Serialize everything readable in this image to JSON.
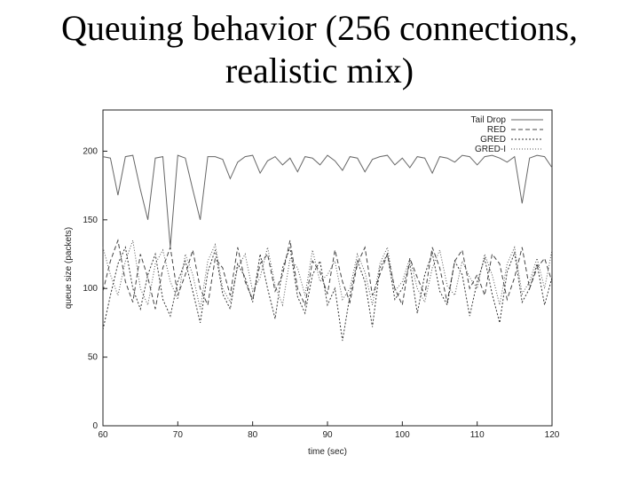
{
  "slide": {
    "title_line1": "Queuing behavior (256 connections,",
    "title_line2": "realistic mix)"
  },
  "chart_data": {
    "type": "line",
    "title": "Queuing behavior (256 connections, realistic mix)",
    "xlabel": "time (sec)",
    "ylabel": "queue size (packets)",
    "xlim": [
      60,
      120
    ],
    "ylim": [
      0,
      230
    ],
    "xticks": [
      60,
      70,
      80,
      90,
      100,
      110,
      120
    ],
    "yticks": [
      0,
      50,
      100,
      150,
      200
    ],
    "grid": false,
    "legend_position": "top-right",
    "series": [
      {
        "name": "Tail Drop",
        "color": "#666666",
        "dash": "",
        "x": [
          60,
          61,
          62,
          63,
          64,
          65,
          66,
          67,
          68,
          69,
          70,
          71,
          72,
          73,
          74,
          75,
          76,
          77,
          78,
          79,
          80,
          81,
          82,
          83,
          84,
          85,
          86,
          87,
          88,
          89,
          90,
          91,
          92,
          93,
          94,
          95,
          96,
          97,
          98,
          99,
          100,
          101,
          102,
          103,
          104,
          105,
          106,
          107,
          108,
          109,
          110,
          111,
          112,
          113,
          114,
          115,
          116,
          117,
          118,
          119,
          120
        ],
        "values": [
          196,
          195,
          168,
          196,
          197,
          172,
          150,
          195,
          196,
          130,
          197,
          195,
          172,
          150,
          196,
          196,
          194,
          180,
          192,
          196,
          197,
          184,
          193,
          196,
          190,
          195,
          185,
          196,
          195,
          190,
          197,
          193,
          186,
          196,
          195,
          185,
          194,
          196,
          197,
          190,
          195,
          188,
          196,
          195,
          184,
          196,
          195,
          192,
          197,
          196,
          190,
          196,
          197,
          195,
          192,
          196,
          162,
          195,
          197,
          196,
          188
        ]
      },
      {
        "name": "RED",
        "color": "#444444",
        "dash": "5,3",
        "x": [
          60,
          61,
          62,
          63,
          64,
          65,
          66,
          67,
          68,
          69,
          70,
          71,
          72,
          73,
          74,
          75,
          76,
          77,
          78,
          79,
          80,
          81,
          82,
          83,
          84,
          85,
          86,
          87,
          88,
          89,
          90,
          91,
          92,
          93,
          94,
          95,
          96,
          97,
          98,
          99,
          100,
          101,
          102,
          103,
          104,
          105,
          106,
          107,
          108,
          109,
          110,
          111,
          112,
          113,
          114,
          115,
          116,
          117,
          118,
          119,
          120
        ],
        "values": [
          98,
          120,
          135,
          105,
          90,
          125,
          108,
          85,
          115,
          130,
          95,
          110,
          128,
          100,
          88,
          122,
          115,
          95,
          130,
          105,
          92,
          118,
          125,
          98,
          110,
          135,
          100,
          88,
          120,
          112,
          96,
          128,
          105,
          90,
          118,
          130,
          95,
          110,
          125,
          100,
          88,
          122,
          108,
          95,
          130,
          115,
          90,
          120,
          128,
          100,
          110,
          95,
          125,
          118,
          92,
          108,
          130,
          100,
          115,
          122,
          105
        ]
      },
      {
        "name": "GRED",
        "color": "#333333",
        "dash": "2,2",
        "x": [
          60,
          61,
          62,
          63,
          64,
          65,
          66,
          67,
          68,
          69,
          70,
          71,
          72,
          73,
          74,
          75,
          76,
          77,
          78,
          79,
          80,
          81,
          82,
          83,
          84,
          85,
          86,
          87,
          88,
          89,
          90,
          91,
          92,
          93,
          94,
          95,
          96,
          97,
          98,
          99,
          100,
          101,
          102,
          103,
          104,
          105,
          106,
          107,
          108,
          109,
          110,
          111,
          112,
          113,
          114,
          115,
          116,
          117,
          118,
          119,
          120
        ],
        "values": [
          70,
          95,
          118,
          130,
          100,
          85,
          110,
          125,
          92,
          80,
          105,
          120,
          98,
          75,
          112,
          128,
          96,
          85,
          118,
          108,
          90,
          125,
          100,
          78,
          115,
          130,
          94,
          82,
          110,
          120,
          88,
          100,
          62,
          95,
          120,
          105,
          72,
          115,
          125,
          92,
          100,
          118,
          82,
          110,
          126,
          98,
          88,
          120,
          110,
          80,
          105,
          122,
          96,
          75,
          112,
          126,
          90,
          100,
          118,
          88,
          108
        ]
      },
      {
        "name": "GRED-I",
        "color": "#555555",
        "dash": "1,2",
        "x": [
          60,
          61,
          62,
          63,
          64,
          65,
          66,
          67,
          68,
          69,
          70,
          71,
          72,
          73,
          74,
          75,
          76,
          77,
          78,
          79,
          80,
          81,
          82,
          83,
          84,
          85,
          86,
          87,
          88,
          89,
          90,
          91,
          92,
          93,
          94,
          95,
          96,
          97,
          98,
          99,
          100,
          101,
          102,
          103,
          104,
          105,
          106,
          107,
          108,
          109,
          110,
          111,
          112,
          113,
          114,
          115,
          116,
          117,
          118,
          119,
          120
        ],
        "values": [
          130,
          110,
          95,
          120,
          135,
          100,
          88,
          118,
          128,
          105,
          92,
          125,
          110,
          85,
          120,
          132,
          100,
          90,
          115,
          125,
          98,
          108,
          130,
          102,
          88,
          122,
          115,
          95,
          128,
          105,
          110,
          120,
          92,
          100,
          125,
          112,
          88,
          118,
          130,
          98,
          105,
          122,
          100,
          90,
          115,
          128,
          102,
          95,
          120,
          108,
          100,
          125,
          110,
          88,
          118,
          130,
          96,
          105,
          122,
          100,
          128
        ]
      }
    ]
  }
}
